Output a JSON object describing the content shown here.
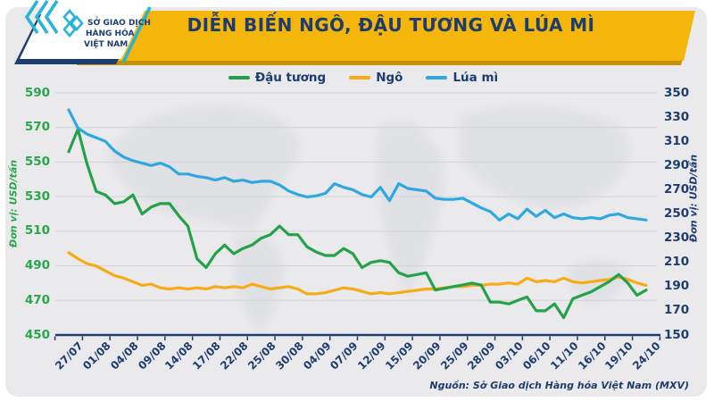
{
  "header": {
    "title": "DIỄN BIẾN NGÔ, ĐẬU TƯƠNG VÀ LÚA MÌ",
    "banner_color": "#f4b60b",
    "brand_navy": "#1e3c6e",
    "logo": {
      "line1": "SỞ GIAO DỊCH",
      "line2": "HÀNG HÓA",
      "line3": "VIỆT NAM",
      "mark_color": "#2ab3d9"
    }
  },
  "legend": [
    {
      "label": "Đậu tương",
      "color": "#26a14b"
    },
    {
      "label": "Ngô",
      "color": "#f7ab16"
    },
    {
      "label": "Lúa mì",
      "color": "#2fa8e1"
    }
  ],
  "source": "Nguồn: Sở Giao dịch Hàng hóa Việt Nam (MXV)",
  "chart_data": {
    "type": "line",
    "grid": true,
    "legend_position": "top",
    "points_per_label": 3,
    "x_labels": [
      "27/07",
      "01/08",
      "04/08",
      "09/08",
      "14/08",
      "17/08",
      "22/08",
      "25/08",
      "30/08",
      "04/09",
      "07/09",
      "12/09",
      "15/09",
      "20/09",
      "25/09",
      "28/09",
      "03/10",
      "06/10",
      "11/10",
      "16/10",
      "19/10",
      "24/10"
    ],
    "left_axis": {
      "title": "Đơn vị: USD/tấn",
      "min": 450,
      "max": 590,
      "step": 20,
      "color": "#2aa54d"
    },
    "right_axis": {
      "title": "Đơn vị: USD/tấn",
      "min": 150,
      "max": 350,
      "step": 20,
      "color": "#1e3c6e"
    },
    "series": [
      {
        "name": "Đậu tương",
        "axis": "left",
        "color": "#26a14b",
        "values": [
          556,
          569,
          549,
          533,
          531,
          526,
          527,
          531,
          520,
          524,
          526,
          526,
          519,
          513,
          494,
          489,
          497,
          502,
          497,
          500,
          502,
          506,
          508,
          513,
          508,
          508,
          501,
          498,
          496,
          496,
          500,
          497,
          489,
          492,
          493,
          492,
          486,
          484,
          485,
          486,
          476,
          477,
          478,
          479,
          480,
          479,
          469,
          469,
          468,
          470,
          472,
          464,
          464,
          468,
          460,
          471,
          473,
          475,
          478,
          481,
          485,
          480,
          473,
          476
        ]
      },
      {
        "name": "Ngô",
        "axis": "right",
        "color": "#f7ab16",
        "values": [
          218,
          213,
          209,
          207,
          203,
          199,
          197,
          194,
          191,
          192,
          189,
          188,
          189,
          188,
          189,
          188,
          190,
          189,
          190,
          189,
          192,
          190,
          188,
          189,
          190,
          188,
          184,
          184,
          185,
          187,
          189,
          188,
          186,
          184,
          185,
          184,
          185,
          186,
          187,
          188,
          188,
          189,
          190,
          190,
          191,
          191,
          192,
          192,
          193,
          192,
          197,
          194,
          195,
          194,
          197,
          194,
          193,
          194,
          195,
          196,
          198,
          196,
          193,
          191
        ]
      },
      {
        "name": "Lúa mì",
        "axis": "right",
        "color": "#2fa8e1",
        "values": [
          336,
          321,
          316,
          313,
          310,
          302,
          297,
          294,
          292,
          290,
          292,
          289,
          283,
          283,
          281,
          280,
          278,
          280,
          277,
          278,
          276,
          277,
          277,
          274,
          269,
          266,
          264,
          265,
          267,
          275,
          272,
          270,
          266,
          264,
          272,
          261,
          275,
          271,
          270,
          269,
          263,
          262,
          262,
          263,
          259,
          255,
          252,
          245,
          250,
          246,
          254,
          248,
          253,
          247,
          250,
          247,
          246,
          247,
          246,
          249,
          250,
          247,
          246,
          245
        ]
      }
    ]
  }
}
